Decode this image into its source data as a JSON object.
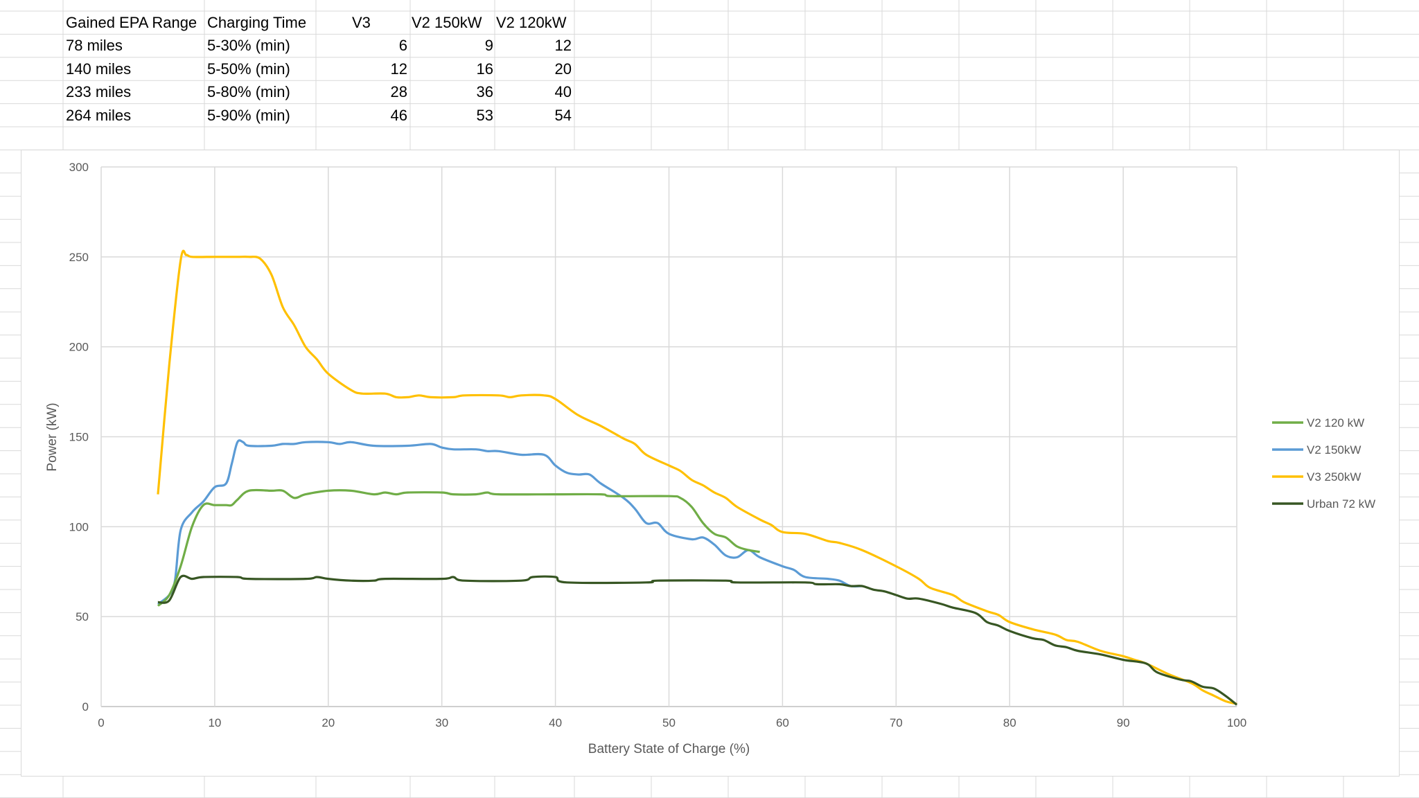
{
  "table": {
    "headers": [
      "Gained EPA Range",
      "Charging Time",
      "V3",
      "V2 150kW",
      "V2 120kW"
    ],
    "rows": [
      [
        "78 miles",
        "5-30% (min)",
        "6",
        "9",
        "12"
      ],
      [
        "140 miles",
        "5-50% (min)",
        "12",
        "16",
        "20"
      ],
      [
        "233 miles",
        "5-80% (min)",
        "28",
        "36",
        "40"
      ],
      [
        "264 miles",
        "5-90% (min)",
        "46",
        "53",
        "54"
      ]
    ]
  },
  "chart_data": {
    "type": "line",
    "title": "",
    "xlabel": "Battery State of Charge (%)",
    "ylabel": "Power (kW)",
    "xlim": [
      0,
      100
    ],
    "ylim": [
      0,
      300
    ],
    "xticks": [
      "0",
      "10",
      "20",
      "30",
      "40",
      "50",
      "60",
      "70",
      "80",
      "90",
      "100"
    ],
    "yticks": [
      "0",
      "50",
      "100",
      "150",
      "200",
      "250",
      "300"
    ],
    "grid": true,
    "legend_position": "right",
    "series": [
      {
        "name": "V2 120 kW",
        "color": "#70ad47",
        "points": [
          [
            5,
            56
          ],
          [
            6,
            62
          ],
          [
            7,
            78
          ],
          [
            8,
            100
          ],
          [
            9,
            112
          ],
          [
            10,
            112
          ],
          [
            11,
            112
          ],
          [
            11.5,
            112
          ],
          [
            12,
            115
          ],
          [
            13,
            120
          ],
          [
            15,
            120
          ],
          [
            16,
            120
          ],
          [
            17,
            116
          ],
          [
            18,
            118
          ],
          [
            20,
            120
          ],
          [
            22,
            120
          ],
          [
            24,
            118
          ],
          [
            25,
            119
          ],
          [
            26,
            118
          ],
          [
            27,
            119
          ],
          [
            30,
            119
          ],
          [
            31,
            118
          ],
          [
            33,
            118
          ],
          [
            34,
            119
          ],
          [
            35,
            118
          ],
          [
            40,
            118
          ],
          [
            44,
            118
          ],
          [
            45,
            117
          ],
          [
            50,
            117
          ],
          [
            51,
            116
          ],
          [
            52,
            111
          ],
          [
            53,
            102
          ],
          [
            54,
            96
          ],
          [
            55,
            94
          ],
          [
            56,
            89
          ],
          [
            57,
            87
          ],
          [
            58,
            86
          ]
        ]
      },
      {
        "name": "V2 150kW",
        "color": "#5b9bd5",
        "points": [
          [
            5,
            57
          ],
          [
            6,
            62
          ],
          [
            6.5,
            70
          ],
          [
            7,
            98
          ],
          [
            8,
            108
          ],
          [
            9,
            114
          ],
          [
            10,
            122
          ],
          [
            11,
            124
          ],
          [
            11.5,
            135
          ],
          [
            12,
            147
          ],
          [
            12.5,
            147
          ],
          [
            13,
            145
          ],
          [
            15,
            145
          ],
          [
            16,
            146
          ],
          [
            17,
            146
          ],
          [
            18,
            147
          ],
          [
            20,
            147
          ],
          [
            21,
            146
          ],
          [
            22,
            147
          ],
          [
            24,
            145
          ],
          [
            27,
            145
          ],
          [
            29,
            146
          ],
          [
            30,
            144
          ],
          [
            31,
            143
          ],
          [
            33,
            143
          ],
          [
            34,
            142
          ],
          [
            35,
            142
          ],
          [
            37,
            140
          ],
          [
            39,
            140
          ],
          [
            40,
            134
          ],
          [
            41,
            130
          ],
          [
            42,
            129
          ],
          [
            43,
            129
          ],
          [
            44,
            124
          ],
          [
            46,
            116
          ],
          [
            47,
            110
          ],
          [
            48,
            102
          ],
          [
            49,
            102
          ],
          [
            50,
            96
          ],
          [
            52,
            93
          ],
          [
            53,
            94
          ],
          [
            54,
            90
          ],
          [
            55,
            84
          ],
          [
            56,
            83
          ],
          [
            57,
            87
          ],
          [
            58,
            83
          ],
          [
            60,
            78
          ],
          [
            61,
            76
          ],
          [
            62,
            72
          ],
          [
            64,
            71
          ],
          [
            65,
            70
          ],
          [
            66,
            67
          ],
          [
            67,
            67
          ]
        ]
      },
      {
        "name": "V3 250kW",
        "color": "#ffc000",
        "points": [
          [
            5,
            118
          ],
          [
            6,
            190
          ],
          [
            7,
            248
          ],
          [
            7.5,
            251
          ],
          [
            8,
            250
          ],
          [
            10,
            250
          ],
          [
            12,
            250
          ],
          [
            13,
            250
          ],
          [
            14,
            249
          ],
          [
            15,
            240
          ],
          [
            16,
            222
          ],
          [
            17,
            212
          ],
          [
            18,
            200
          ],
          [
            19,
            193
          ],
          [
            20,
            185
          ],
          [
            22,
            176
          ],
          [
            23,
            174
          ],
          [
            25,
            174
          ],
          [
            26,
            172
          ],
          [
            27,
            172
          ],
          [
            28,
            173
          ],
          [
            29,
            172
          ],
          [
            31,
            172
          ],
          [
            32,
            173
          ],
          [
            35,
            173
          ],
          [
            36,
            172
          ],
          [
            37,
            173
          ],
          [
            39,
            173
          ],
          [
            40,
            171
          ],
          [
            42,
            162
          ],
          [
            44,
            156
          ],
          [
            46,
            149
          ],
          [
            47,
            146
          ],
          [
            48,
            140
          ],
          [
            50,
            134
          ],
          [
            51,
            131
          ],
          [
            52,
            126
          ],
          [
            53,
            123
          ],
          [
            54,
            119
          ],
          [
            55,
            116
          ],
          [
            56,
            111
          ],
          [
            58,
            104
          ],
          [
            59,
            101
          ],
          [
            60,
            97
          ],
          [
            62,
            96
          ],
          [
            64,
            92
          ],
          [
            65,
            91
          ],
          [
            67,
            87
          ],
          [
            70,
            78
          ],
          [
            72,
            71
          ],
          [
            73,
            66
          ],
          [
            75,
            62
          ],
          [
            76,
            58
          ],
          [
            78,
            53
          ],
          [
            79,
            51
          ],
          [
            80,
            47
          ],
          [
            82,
            43
          ],
          [
            84,
            40
          ],
          [
            85,
            37
          ],
          [
            86,
            36
          ],
          [
            88,
            31
          ],
          [
            90,
            28
          ],
          [
            91,
            26
          ],
          [
            92,
            24
          ],
          [
            94,
            18
          ],
          [
            96,
            13
          ],
          [
            97,
            9
          ],
          [
            98,
            6
          ],
          [
            99,
            3
          ],
          [
            100,
            1.5
          ]
        ]
      },
      {
        "name": "Urban 72 kW",
        "color": "#375623",
        "points": [
          [
            5,
            58
          ],
          [
            6,
            59
          ],
          [
            7,
            72
          ],
          [
            8,
            71
          ],
          [
            9,
            72
          ],
          [
            12,
            72
          ],
          [
            13,
            71
          ],
          [
            18,
            71
          ],
          [
            19,
            72
          ],
          [
            20,
            71
          ],
          [
            22,
            70
          ],
          [
            24,
            70
          ],
          [
            25,
            71
          ],
          [
            30,
            71
          ],
          [
            31,
            72
          ],
          [
            32,
            70
          ],
          [
            37,
            70
          ],
          [
            38,
            72
          ],
          [
            40,
            72
          ],
          [
            41,
            69
          ],
          [
            48,
            69
          ],
          [
            49,
            70
          ],
          [
            55,
            70
          ],
          [
            56,
            69
          ],
          [
            62,
            69
          ],
          [
            63,
            68
          ],
          [
            65,
            68
          ],
          [
            66,
            67
          ],
          [
            67,
            67
          ],
          [
            68,
            65
          ],
          [
            69,
            64
          ],
          [
            70,
            62
          ],
          [
            71,
            60
          ],
          [
            72,
            60
          ],
          [
            74,
            57
          ],
          [
            75,
            55
          ],
          [
            77,
            52
          ],
          [
            78,
            47
          ],
          [
            79,
            45
          ],
          [
            80,
            42
          ],
          [
            82,
            38
          ],
          [
            83,
            37
          ],
          [
            84,
            34
          ],
          [
            85,
            33
          ],
          [
            86,
            31
          ],
          [
            88,
            29
          ],
          [
            90,
            26
          ],
          [
            92,
            24
          ],
          [
            93,
            19
          ],
          [
            95,
            15
          ],
          [
            96,
            14
          ],
          [
            97,
            11
          ],
          [
            98,
            10
          ],
          [
            99,
            6
          ],
          [
            100,
            1
          ]
        ]
      }
    ]
  }
}
